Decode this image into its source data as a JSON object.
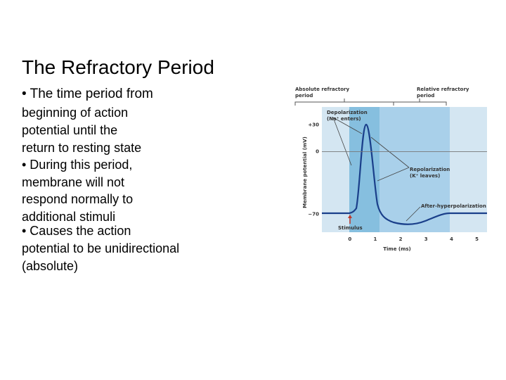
{
  "slide": {
    "title": "The Refractory Period",
    "lines": [
      "• The time period from",
      "beginning of action",
      "potential until the",
      "return to resting state",
      "• During this period,",
      "membrane will not",
      "respond normally to",
      "additional stimuli",
      "• Causes the action",
      "potential to be unidirectional",
      "(absolute)"
    ]
  },
  "figure": {
    "absolute": [
      "Absolute refractory",
      "period"
    ],
    "relative": [
      "Relative refractory",
      "period"
    ],
    "depolarization": [
      "Depolarization",
      "(Na⁺ enters)"
    ],
    "repolarization": [
      "Repolarization",
      "(K⁺ leaves)"
    ],
    "after": "After-hyperpolarization",
    "stimulus": "Stimulus",
    "ylabel": "Membrane potential (mV)",
    "xlabel": "Time (ms)",
    "xlim": [
      -1.1,
      5.4
    ],
    "ylim": [
      -90,
      50
    ],
    "yticks": [
      {
        "value": 30,
        "label": "+30"
      },
      0,
      {
        "value": -70,
        "label": "−70"
      }
    ],
    "xticks": [
      0,
      1,
      2,
      3,
      4,
      5
    ]
  }
}
